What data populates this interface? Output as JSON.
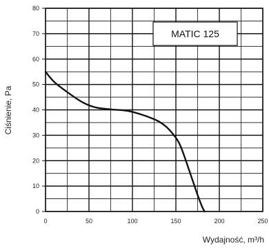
{
  "chart_data": {
    "type": "line",
    "xlabel": "Wydajność, m³/h",
    "ylabel": "Ciśnienie, Pa",
    "xlim": [
      0,
      250
    ],
    "ylim": [
      0,
      80
    ],
    "x_ticks": [
      "0",
      "50",
      "100",
      "150",
      "200",
      "250"
    ],
    "y_ticks": [
      "0",
      "10",
      "20",
      "30",
      "40",
      "50",
      "60",
      "70",
      "80"
    ],
    "grid": true,
    "legend_placement": "top-right",
    "series": [
      {
        "name": "MATIC 125",
        "color": "#111111",
        "points": [
          [
            0,
            55
          ],
          [
            10,
            51
          ],
          [
            25,
            47
          ],
          [
            40,
            43.5
          ],
          [
            50,
            41.8
          ],
          [
            60,
            40.8
          ],
          [
            75,
            40.2
          ],
          [
            90,
            39.8
          ],
          [
            100,
            39.2
          ],
          [
            110,
            38.2
          ],
          [
            120,
            37
          ],
          [
            130,
            35.5
          ],
          [
            140,
            33
          ],
          [
            150,
            29
          ],
          [
            155,
            26
          ],
          [
            160,
            21.5
          ],
          [
            165,
            16.5
          ],
          [
            170,
            11.5
          ],
          [
            175,
            6.5
          ],
          [
            180,
            2
          ],
          [
            183,
            0
          ]
        ]
      }
    ]
  }
}
